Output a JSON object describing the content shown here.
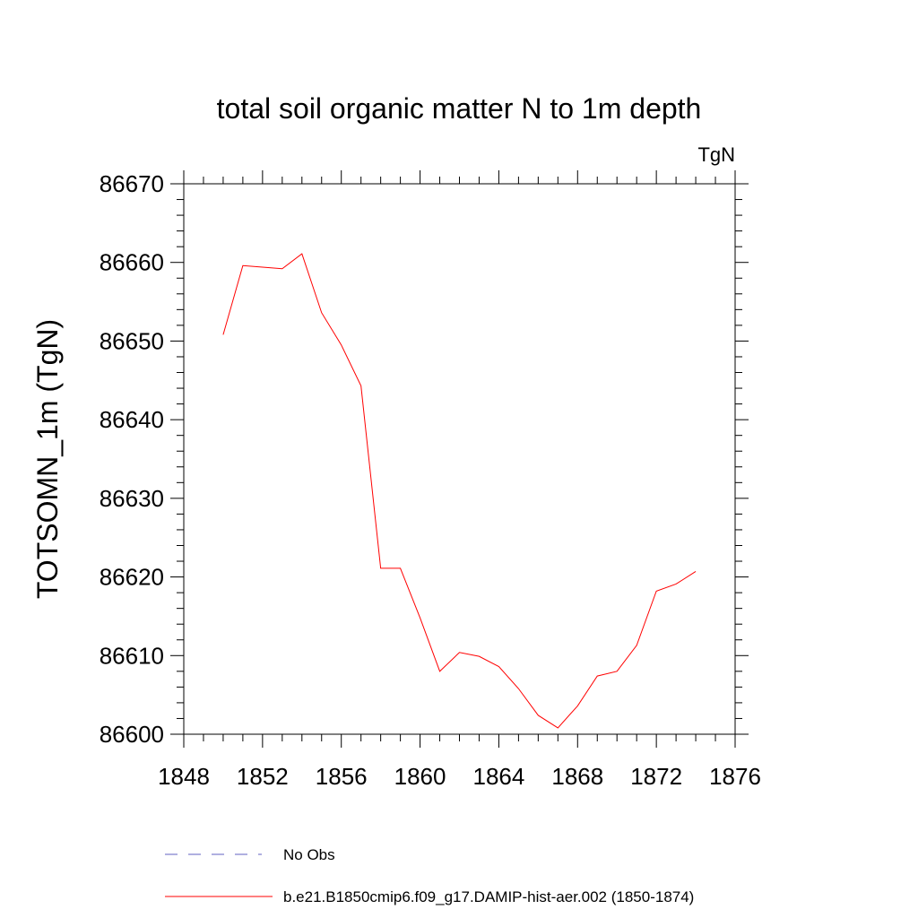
{
  "chart_data": {
    "type": "line",
    "title": "total soil organic matter N to 1m depth",
    "units_label": "TgN",
    "ylabel": "TOTSOMN_1m  (TgN)",
    "xlabel": "",
    "xlim": [
      1848,
      1876
    ],
    "ylim": [
      86600,
      86670
    ],
    "x_major_ticks": [
      1848,
      1852,
      1856,
      1860,
      1864,
      1868,
      1872,
      1876
    ],
    "x_minor_step": 1,
    "y_major_ticks": [
      86600,
      86610,
      86620,
      86630,
      86640,
      86650,
      86660,
      86670
    ],
    "y_minor_step": 2,
    "grid": false,
    "legend_position": "bottom",
    "series": [
      {
        "name": "No Obs",
        "color": "#6060c0",
        "style": "dashed",
        "x": [],
        "y": []
      },
      {
        "name": "b.e21.B1850cmip6.f09_g17.DAMIP-hist-aer.002 (1850-1874)",
        "color": "#ff0000",
        "style": "solid",
        "x": [
          1850,
          1851,
          1852,
          1853,
          1854,
          1855,
          1856,
          1857,
          1858,
          1859,
          1860,
          1861,
          1862,
          1863,
          1864,
          1865,
          1866,
          1867,
          1868,
          1869,
          1870,
          1871,
          1872,
          1873,
          1874
        ],
        "y": [
          86650.8,
          86659.6,
          86659.4,
          86659.2,
          86661.1,
          86653.6,
          86649.5,
          86644.3,
          86621.1,
          86621.1,
          86614.8,
          86608.0,
          86610.4,
          86609.9,
          86608.6,
          86605.8,
          86602.4,
          86600.8,
          86603.6,
          86607.4,
          86608.0,
          86611.3,
          86618.2,
          86619.1,
          86620.7
        ]
      }
    ]
  }
}
